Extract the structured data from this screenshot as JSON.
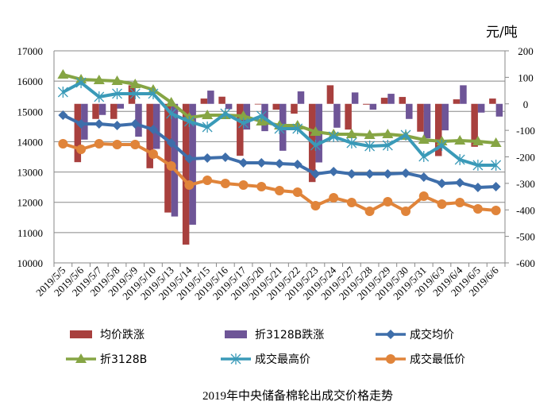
{
  "chart_data": {
    "type": "bar+line",
    "title": "2019年中央储备棉轮出成交价格走势",
    "right_axis_unit": "元/吨",
    "categories": [
      "2019/5/5",
      "2019/5/6",
      "2019/5/7",
      "2019/5/8",
      "2019/5/9",
      "2019/5/10",
      "2019/5/13",
      "2019/5/14",
      "2019/5/15",
      "2019/5/16",
      "2019/5/17",
      "2019/5/20",
      "2019/5/21",
      "2019/5/22",
      "2019/5/23",
      "2019/5/24",
      "2019/5/27",
      "2019/5/28",
      "2019/5/29",
      "2019/5/30",
      "2019/5/31",
      "2019/6/3",
      "2019/6/4",
      "2019/6/5",
      "2019/6/6"
    ],
    "left_axis": {
      "min": 10000,
      "max": 17000,
      "step": 1000,
      "ticks": [
        "10000",
        "11000",
        "12000",
        "13000",
        "14000",
        "15000",
        "16000",
        "17000"
      ]
    },
    "right_axis": {
      "min": -600,
      "max": 200,
      "step": 100,
      "ticks": [
        "-600",
        "-500",
        "-400",
        "-300",
        "-200",
        "-100",
        "0",
        "100",
        "200"
      ]
    },
    "grid": true,
    "legend_position": "bottom",
    "series": [
      {
        "name": "均价跌涨",
        "type": "bar",
        "axis": "right",
        "color": "#A8403E",
        "values": [
          null,
          -220,
          -57,
          -57,
          70,
          -243,
          -410,
          -531,
          20,
          27,
          -196,
          0,
          -22,
          -37,
          -295,
          70,
          -97,
          -3,
          23,
          26,
          -105,
          -197,
          17,
          -162,
          20
        ]
      },
      {
        "name": "折3128B跌涨",
        "type": "bar",
        "axis": "right",
        "color": "#6E5597",
        "values": [
          null,
          -135,
          -42,
          -18,
          -124,
          -170,
          -425,
          -456,
          50,
          -20,
          -97,
          -103,
          -177,
          47,
          -221,
          -90,
          43,
          -22,
          38,
          -57,
          -130,
          -100,
          70,
          -33,
          -48
        ]
      },
      {
        "name": "成交均价",
        "type": "line",
        "axis": "left",
        "marker": "diamond",
        "color": "#3E6EAA",
        "values": [
          14877,
          14588,
          14588,
          14536,
          14588,
          14405,
          13959,
          13434,
          13461,
          13487,
          13304,
          13304,
          13277,
          13251,
          12937,
          13015,
          12937,
          12937,
          12937,
          12963,
          12832,
          12622,
          12648,
          12491,
          12517
        ]
      },
      {
        "name": "折3128B",
        "type": "line",
        "axis": "left",
        "marker": "triangle",
        "color": "#86A544",
        "values": [
          16214,
          16057,
          16030,
          16004,
          15899,
          15716,
          15296,
          14798,
          14877,
          14877,
          14850,
          14667,
          14536,
          14536,
          14326,
          14248,
          14248,
          14221,
          14248,
          14195,
          14064,
          14011,
          14038,
          14011,
          13959
        ]
      },
      {
        "name": "成交最高价",
        "type": "line",
        "axis": "left",
        "marker": "star",
        "color": "#3A9AB8",
        "values": [
          15637,
          15952,
          15480,
          15585,
          15585,
          15585,
          14929,
          14667,
          14483,
          14929,
          14615,
          14851,
          14431,
          14431,
          13880,
          14169,
          13959,
          13854,
          13880,
          14221,
          13513,
          13880,
          13408,
          13225,
          13225
        ]
      },
      {
        "name": "成交最低价",
        "type": "line",
        "axis": "left",
        "marker": "circle",
        "color": "#E0843A",
        "values": [
          13933,
          13749,
          13933,
          13907,
          13907,
          13592,
          13199,
          12569,
          12727,
          12622,
          12569,
          12517,
          12386,
          12333,
          11888,
          12150,
          11993,
          11705,
          12019,
          11705,
          12202,
          11940,
          11993,
          11783,
          11731
        ]
      }
    ]
  }
}
